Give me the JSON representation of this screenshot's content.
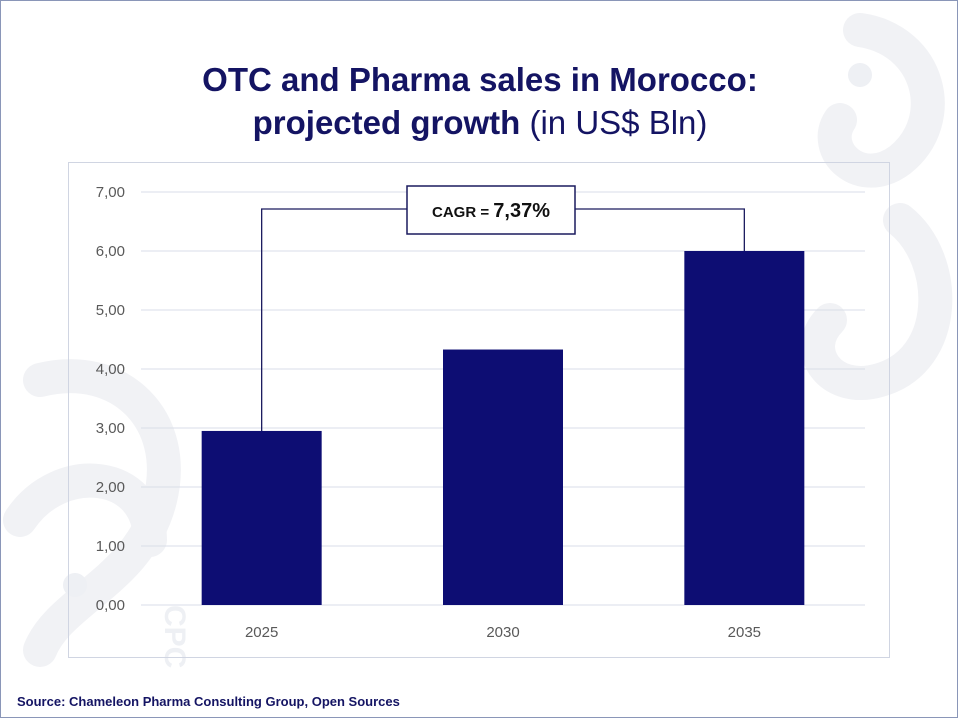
{
  "title": {
    "line1": "OTC and Pharma sales in Morocco:",
    "line2_bold": "projected growth",
    "line2_unit": "(in US$ Bln)"
  },
  "annotation": {
    "prefix": "CAGR = ",
    "value": "7,37%"
  },
  "source": "Source: Chameleon Pharma Consulting Group, Open Sources",
  "colors": {
    "bar": "#0d0d73",
    "title": "#141463",
    "grid": "#d9dde8",
    "axis_text": "#595959",
    "bracket": "#1a1a5e"
  },
  "chart_data": {
    "type": "bar",
    "categories": [
      "2025",
      "2030",
      "2035"
    ],
    "values": [
      2.95,
      4.33,
      6.0
    ],
    "ylim": [
      0,
      7
    ],
    "yticks": [
      "0,00",
      "1,00",
      "2,00",
      "3,00",
      "4,00",
      "5,00",
      "6,00",
      "7,00"
    ],
    "ytick_values": [
      0,
      1,
      2,
      3,
      4,
      5,
      6,
      7
    ],
    "grid": true,
    "legend": "none",
    "annotation": "CAGR = 7,37%"
  }
}
